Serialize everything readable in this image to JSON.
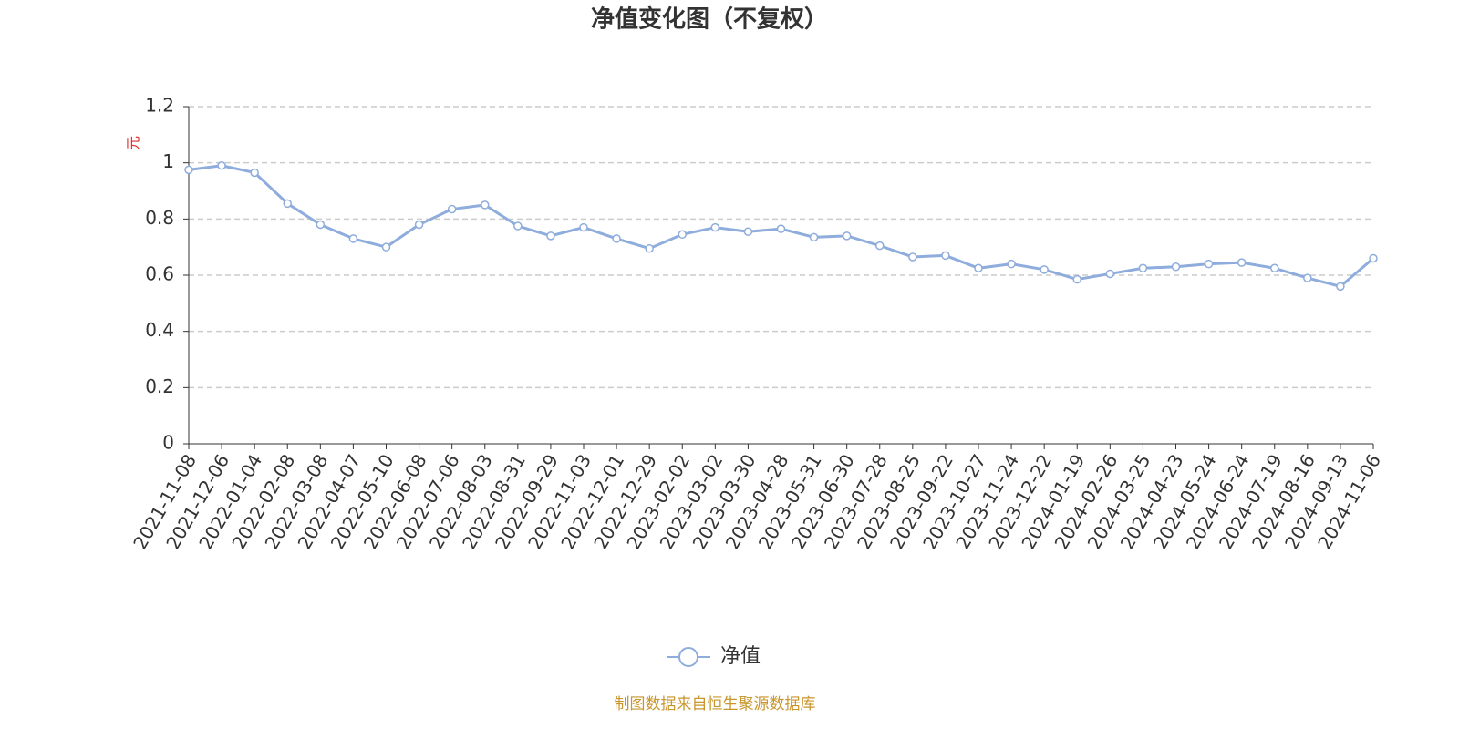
{
  "chart_data": {
    "type": "line",
    "title": "净值变化图（不复权）",
    "y_label": "元",
    "categories": [
      "2021-11-08",
      "2021-12-06",
      "2022-01-04",
      "2022-02-08",
      "2022-03-08",
      "2022-04-07",
      "2022-05-10",
      "2022-06-08",
      "2022-07-06",
      "2022-08-03",
      "2022-08-31",
      "2022-09-29",
      "2022-11-03",
      "2022-12-01",
      "2022-12-29",
      "2023-02-02",
      "2023-03-02",
      "2023-03-30",
      "2023-04-28",
      "2023-05-31",
      "2023-06-30",
      "2023-07-28",
      "2023-08-25",
      "2023-09-22",
      "2023-10-27",
      "2023-11-24",
      "2023-12-22",
      "2024-01-19",
      "2024-02-26",
      "2024-03-25",
      "2024-04-23",
      "2024-05-24",
      "2024-06-24",
      "2024-07-19",
      "2024-08-16",
      "2024-09-13",
      "2024-11-06"
    ],
    "series": [
      {
        "name": "净值",
        "color": "#8eacdc",
        "values": [
          0.975,
          0.99,
          0.965,
          0.855,
          0.78,
          0.73,
          0.7,
          0.78,
          0.835,
          0.85,
          0.775,
          0.74,
          0.77,
          0.73,
          0.695,
          0.745,
          0.77,
          0.755,
          0.765,
          0.735,
          0.74,
          0.705,
          0.665,
          0.67,
          0.625,
          0.64,
          0.62,
          0.585,
          0.605,
          0.625,
          0.63,
          0.64,
          0.645,
          0.625,
          0.59,
          0.56,
          0.66
        ]
      }
    ],
    "ylim": [
      0,
      1.2
    ],
    "yticks": [
      0,
      0.2,
      0.4,
      0.6,
      0.8,
      1,
      1.2
    ],
    "grid": true,
    "source": "制图数据来自恒生聚源数据库"
  }
}
